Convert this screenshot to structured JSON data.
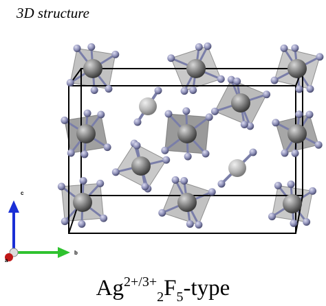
{
  "header": {
    "title": "3D structure"
  },
  "axes": {
    "c": "c",
    "b": "b",
    "a": "a"
  },
  "formula": {
    "element1": "Ag",
    "charge": "2+/3+",
    "count1": "2",
    "element2": "F",
    "count2": "5",
    "suffix": "-type"
  }
}
